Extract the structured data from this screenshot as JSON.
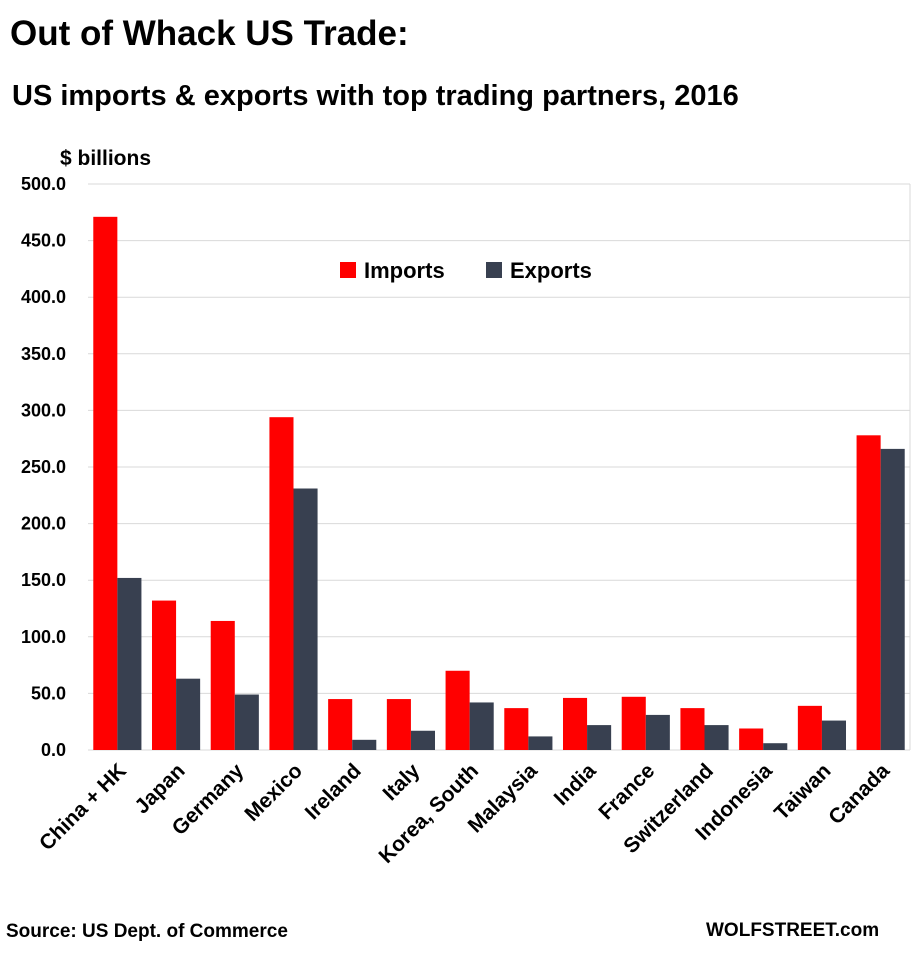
{
  "header": {
    "title": "Out of Whack US Trade:",
    "subtitle": "US imports & exports with top trading partners, 2016",
    "unit": "$ billions"
  },
  "footer": {
    "source": "Source: US Dept. of Commerce",
    "credit": "WOLFSTREET.com"
  },
  "colors": {
    "imports": "#ff0000",
    "exports": "#384050",
    "grid": "#d9d9d9"
  },
  "chart_data": {
    "type": "bar",
    "title": "US imports & exports with top trading partners, 2016",
    "ylabel": "$ billions",
    "xlabel": "",
    "ylim": [
      0,
      500
    ],
    "yticks": [
      "0.0",
      "50.0",
      "100.0",
      "150.0",
      "200.0",
      "250.0",
      "300.0",
      "350.0",
      "400.0",
      "450.0",
      "500.0"
    ],
    "grid": true,
    "legend_position": "top-center",
    "categories": [
      "China + HK",
      "Japan",
      "Germany",
      "Mexico",
      "Ireland",
      "Italy",
      "Korea, South",
      "Malaysia",
      "India",
      "France",
      "Switzerland",
      "Indonesia",
      "Taiwan",
      "Canada"
    ],
    "series": [
      {
        "name": "Imports",
        "values": [
          471,
          132,
          114,
          294,
          45,
          45,
          70,
          37,
          46,
          47,
          37,
          19,
          39,
          278
        ]
      },
      {
        "name": "Exports",
        "values": [
          152,
          63,
          49,
          231,
          9,
          17,
          42,
          12,
          22,
          31,
          22,
          6,
          26,
          266
        ]
      }
    ]
  }
}
